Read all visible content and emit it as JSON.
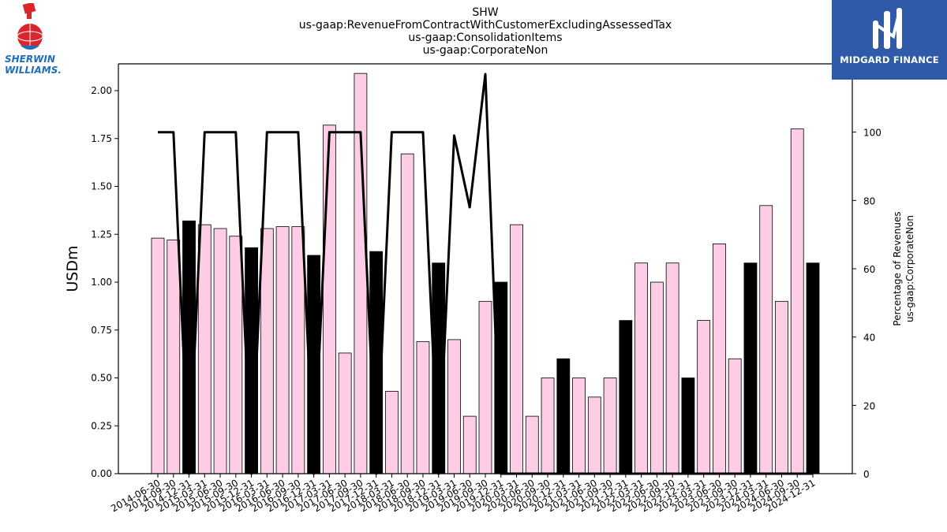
{
  "header": {
    "title_lines": [
      "SHW",
      "us-gaap:RevenueFromContractWithCustomerExcludingAssessedTax",
      "us-gaap:ConsolidationItems",
      "us-gaap:CorporateNon"
    ]
  },
  "logos": {
    "left": {
      "line1": "SHERWIN",
      "line2": "WILLIAMS."
    },
    "right": {
      "text": "MIDGARD FINANCE"
    }
  },
  "colors": {
    "bar_pink": "#fccde5",
    "bar_black": "#000000",
    "line": "#000000",
    "brand_blue": "#2e5aa8",
    "sw_blue": "#1f6fb8",
    "sw_red": "#d9262c"
  },
  "chart_data": {
    "type": "bar",
    "ylabel": "USDm",
    "y2label_lines": [
      "Percentage of Revenues",
      "us-gaap:CorporateNon"
    ],
    "ylim": [
      0,
      2.14
    ],
    "y2lim": [
      0,
      120
    ],
    "yticks": [
      "0.00",
      "0.25",
      "0.50",
      "0.75",
      "1.00",
      "1.25",
      "1.50",
      "1.75",
      "2.00"
    ],
    "y2ticks": [
      "0",
      "20",
      "40",
      "60",
      "80",
      "100"
    ],
    "grid": false,
    "categories": [
      "2014-06-30",
      "2014-09-30",
      "2014-12-31",
      "2015-03-31",
      "2015-06-30",
      "2015-09-30",
      "2015-12-31",
      "2016-03-31",
      "2016-06-30",
      "2016-09-30",
      "2016-12-31",
      "2017-03-31",
      "2017-06-30",
      "2017-09-30",
      "2017-12-31",
      "2018-03-31",
      "2018-06-30",
      "2018-09-30",
      "2018-12-31",
      "2019-03-31",
      "2019-06-30",
      "2019-09-30",
      "2019-12-31",
      "2020-03-31",
      "2020-06-30",
      "2020-09-30",
      "2020-12-31",
      "2021-03-31",
      "2021-06-30",
      "2021-09-30",
      "2021-12-31",
      "2022-03-31",
      "2022-06-30",
      "2022-09-30",
      "2022-12-31",
      "2023-03-31",
      "2023-06-30",
      "2023-09-30",
      "2023-12-31",
      "2024-03-31",
      "2024-06-30",
      "2024-09-30",
      "2024-12-31"
    ],
    "values": [
      1.23,
      1.22,
      1.32,
      1.3,
      1.28,
      1.24,
      1.18,
      1.28,
      1.29,
      1.29,
      1.14,
      1.82,
      0.63,
      2.09,
      1.16,
      0.43,
      1.67,
      0.69,
      1.1,
      0.7,
      0.3,
      0.9,
      1.0,
      1.3,
      0.3,
      0.5,
      0.6,
      0.5,
      0.4,
      0.5,
      0.8,
      1.1,
      1.0,
      1.1,
      0.5,
      0.8,
      1.2,
      0.6,
      1.1,
      1.4,
      0.9,
      1.8,
      1.1
    ],
    "bar_colors": [
      "pink",
      "pink",
      "black",
      "pink",
      "pink",
      "pink",
      "black",
      "pink",
      "pink",
      "pink",
      "black",
      "pink",
      "pink",
      "pink",
      "black",
      "pink",
      "pink",
      "pink",
      "black",
      "pink",
      "pink",
      "pink",
      "black",
      "pink",
      "pink",
      "pink",
      "black",
      "pink",
      "pink",
      "pink",
      "black",
      "pink",
      "pink",
      "pink",
      "black",
      "pink",
      "pink",
      "pink",
      "black",
      "pink",
      "pink",
      "pink",
      "black"
    ],
    "line_series": {
      "axis": "right",
      "values": [
        100,
        100,
        0,
        100,
        100,
        100,
        0,
        100,
        100,
        100,
        0,
        100,
        100,
        100,
        0,
        100,
        100,
        100,
        0,
        99,
        78,
        117,
        0,
        0,
        0,
        0,
        0,
        0,
        0,
        0,
        0,
        0,
        0,
        0,
        0,
        0,
        0,
        0,
        0,
        0,
        0,
        0,
        0
      ]
    }
  }
}
